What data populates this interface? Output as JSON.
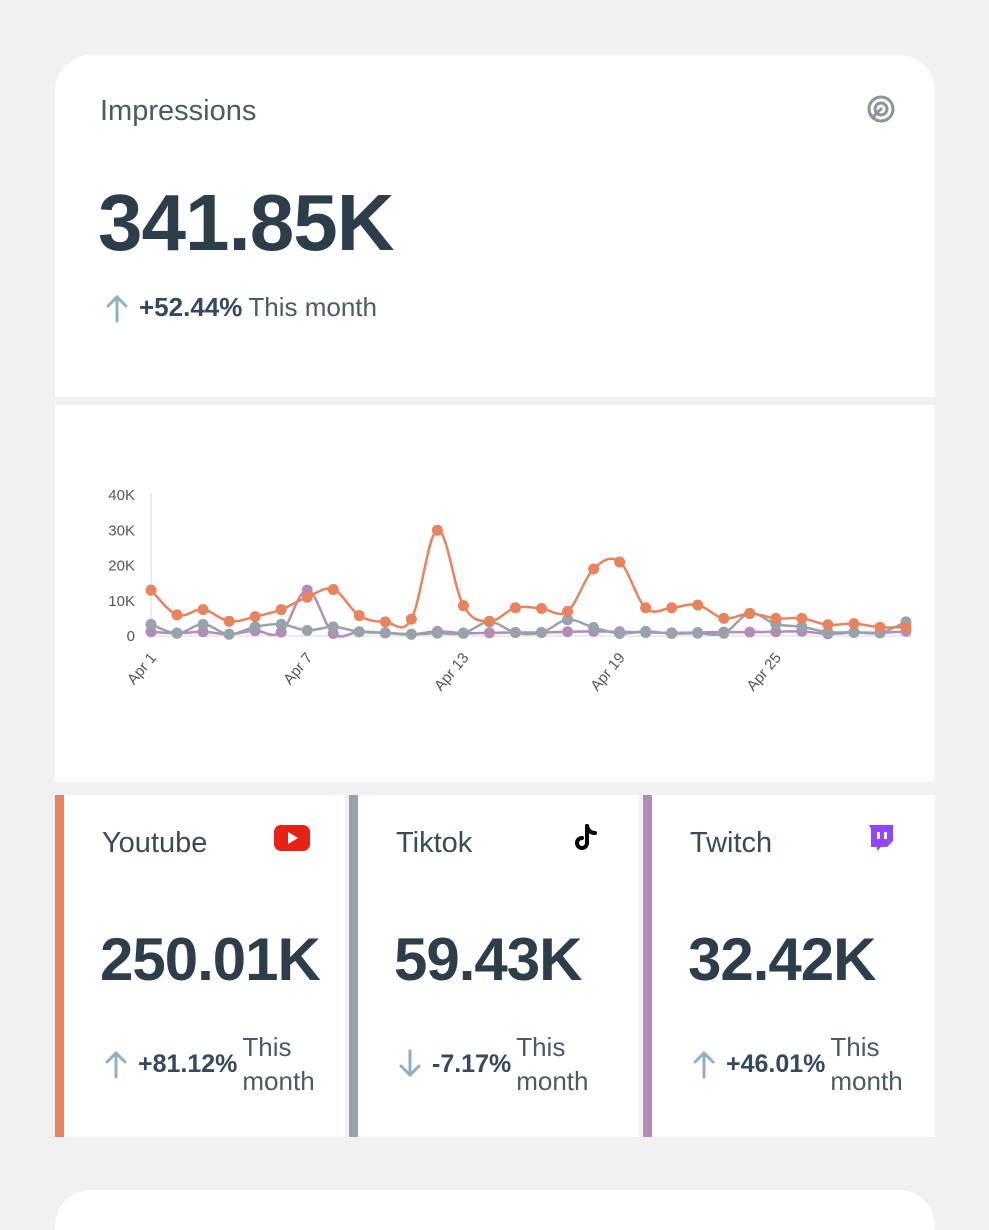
{
  "summary": {
    "title": "Impressions",
    "icon": "impressions-target-icon",
    "value": "341.85K",
    "change_pct": "+52.44%",
    "change_direction": "up",
    "period": "This month"
  },
  "chart_data": {
    "type": "line",
    "x": [
      "Apr 1",
      "Apr 2",
      "Apr 3",
      "Apr 4",
      "Apr 5",
      "Apr 6",
      "Apr 7",
      "Apr 8",
      "Apr 9",
      "Apr 10",
      "Apr 11",
      "Apr 12",
      "Apr 13",
      "Apr 14",
      "Apr 15",
      "Apr 16",
      "Apr 17",
      "Apr 18",
      "Apr 19",
      "Apr 20",
      "Apr 21",
      "Apr 22",
      "Apr 23",
      "Apr 24",
      "Apr 25",
      "Apr 26",
      "Apr 27",
      "Apr 28",
      "Apr 29",
      "Apr 30"
    ],
    "xticks": [
      "Apr 1",
      "Apr 7",
      "Apr 13",
      "Apr 19",
      "Apr 25"
    ],
    "yticks": [
      "0",
      "10K",
      "20K",
      "30K",
      "40K"
    ],
    "ylim": [
      0,
      40000
    ],
    "series": [
      {
        "name": "Youtube",
        "color": "#e8825f",
        "values": [
          13000,
          6000,
          7500,
          4200,
          5500,
          7500,
          11000,
          13200,
          5800,
          4000,
          4800,
          30000,
          8600,
          4200,
          8000,
          7800,
          7000,
          19000,
          21000,
          8000,
          8000,
          8800,
          5000,
          6400,
          5000,
          5000,
          3200,
          3500,
          2500,
          2500
        ]
      },
      {
        "name": "Tiktok",
        "color": "#97a3ab",
        "values": [
          3300,
          800,
          3300,
          500,
          2600,
          3300,
          1600,
          2600,
          1200,
          900,
          500,
          800,
          800,
          4000,
          1000,
          1000,
          4600,
          2400,
          700,
          1300,
          700,
          800,
          800,
          6400,
          3400,
          2600,
          1100,
          1100,
          900,
          4000
        ]
      },
      {
        "name": "Twitch",
        "color": "#b48cb7",
        "values": [
          1200,
          800,
          1200,
          500,
          1500,
          1100,
          13000,
          700,
          1200,
          900,
          500,
          1300,
          800,
          900,
          1000,
          1000,
          1200,
          1300,
          1200,
          1000,
          900,
          1000,
          1100,
          1100,
          1200,
          1300,
          600,
          1000,
          900,
          1300
        ]
      }
    ]
  },
  "platforms": [
    {
      "name": "Youtube",
      "icon": "youtube-icon",
      "accent": "#e8825f",
      "value": "250.01K",
      "change_pct": "+81.12%",
      "direction": "up",
      "period": "This month"
    },
    {
      "name": "Tiktok",
      "icon": "tiktok-icon",
      "accent": "#97a3ab",
      "value": "59.43K",
      "change_pct": "-7.17%",
      "direction": "down",
      "period": "This month"
    },
    {
      "name": "Twitch",
      "icon": "twitch-icon",
      "accent": "#b48cb7",
      "value": "32.42K",
      "change_pct": "+46.01%",
      "direction": "up",
      "period": "This month"
    }
  ]
}
